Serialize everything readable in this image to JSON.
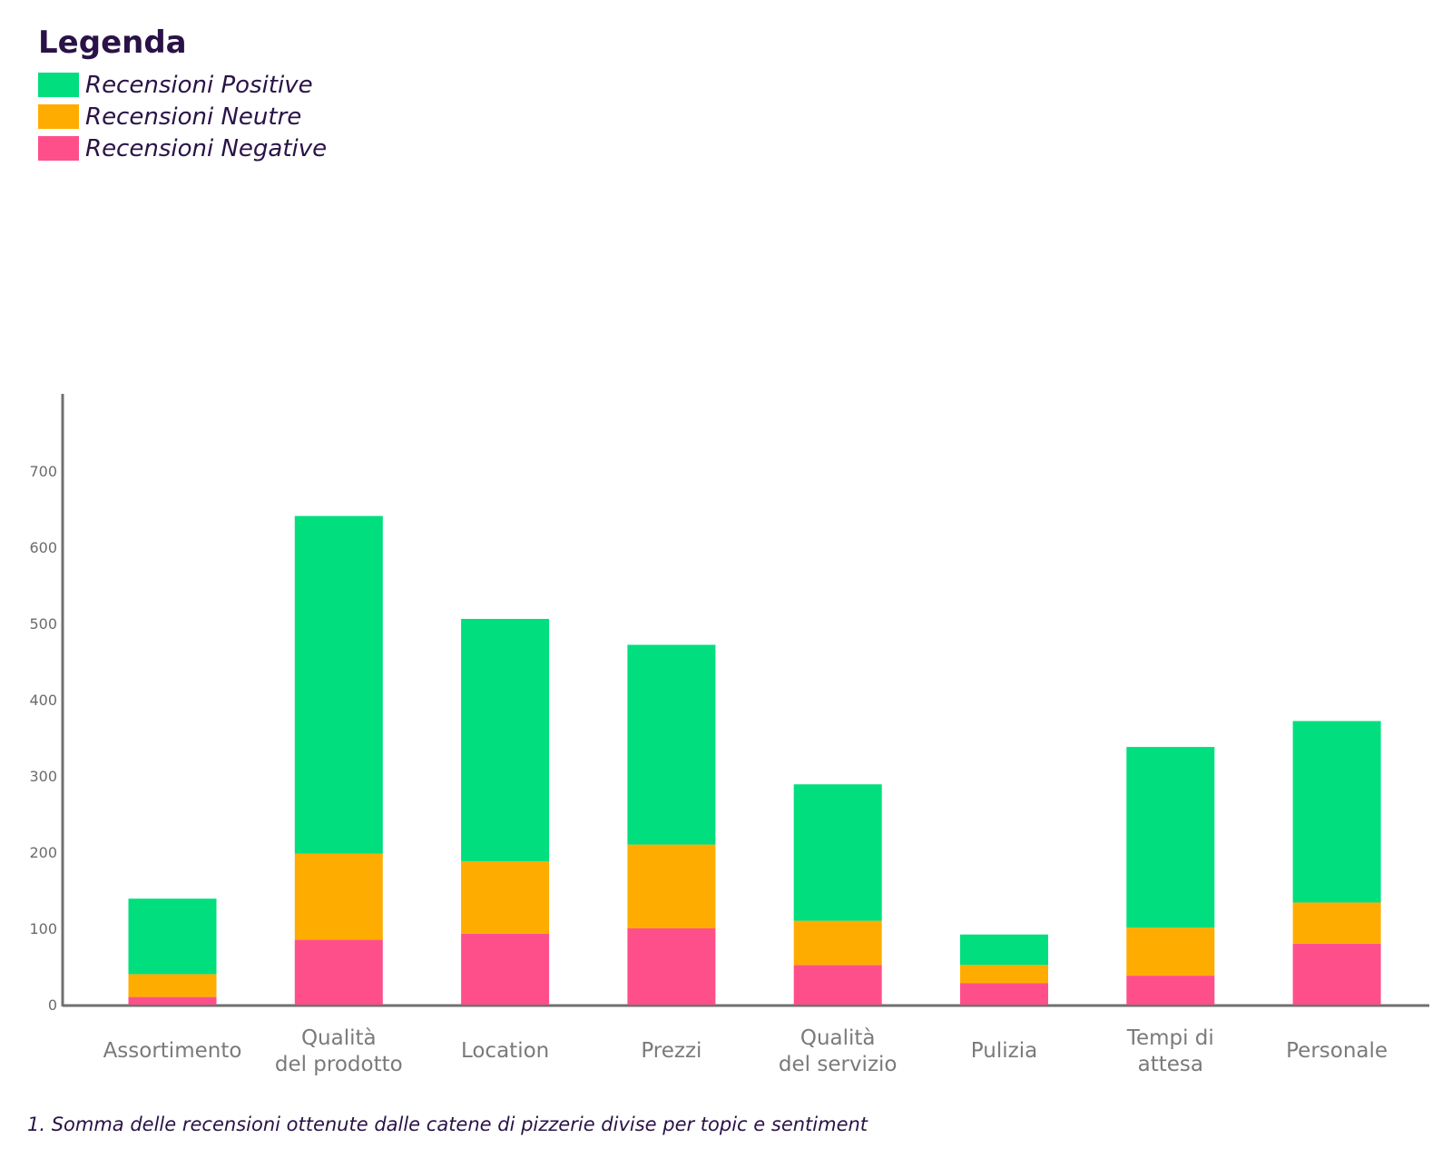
{
  "chart_data": {
    "type": "bar",
    "stacked": true,
    "legend_title": "Legenda",
    "legend_position": "top-left",
    "categories": [
      [
        "Assortimento"
      ],
      [
        "Qualità",
        "del prodotto"
      ],
      [
        "Location"
      ],
      [
        "Prezzi"
      ],
      [
        "Qualità",
        "del servizio"
      ],
      [
        "Pulizia"
      ],
      [
        "Tempi di",
        "attesa"
      ],
      [
        "Personale"
      ]
    ],
    "series": [
      {
        "name": "Recensioni Negative",
        "color": "#ff4f8b",
        "values": [
          10,
          85,
          93,
          100,
          52,
          28,
          38,
          80
        ]
      },
      {
        "name": "Recensioni Neutre",
        "color": "#ffac00",
        "values": [
          30,
          113,
          95,
          110,
          58,
          24,
          63,
          54
        ]
      },
      {
        "name": "Recensioni Positive",
        "color": "#00de7e",
        "values": [
          99,
          443,
          318,
          262,
          179,
          40,
          237,
          238
        ]
      }
    ],
    "legend_order": [
      "Recensioni Positive",
      "Recensioni Neutre",
      "Recensioni Negative"
    ],
    "y_ticks": [
      0,
      100,
      200,
      300,
      400,
      500,
      600,
      700
    ],
    "ylim": [
      0,
      800
    ],
    "grid": false,
    "xlabel": "",
    "ylabel": "",
    "caption": "1. Somma delle recensioni ottenute dalle catene di pizzerie divise per topic e sentiment"
  }
}
